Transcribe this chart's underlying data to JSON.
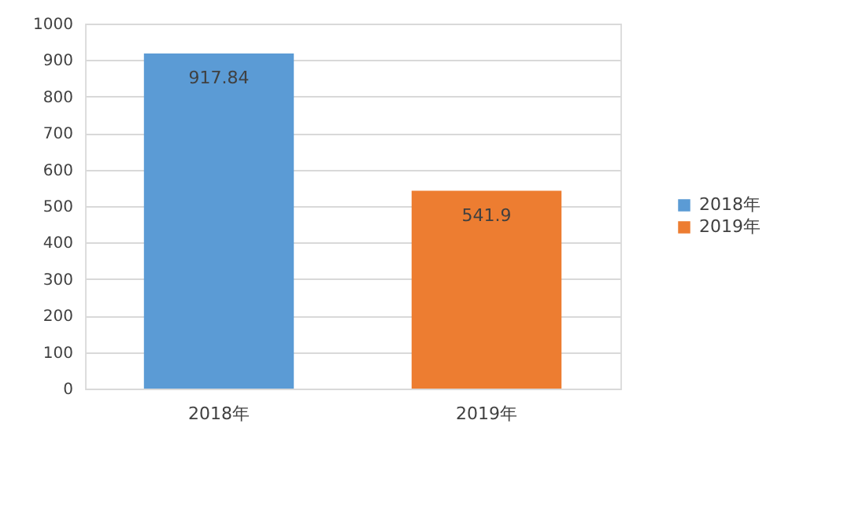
{
  "chart_data": {
    "type": "bar",
    "categories": [
      "2018年",
      "2019年"
    ],
    "series": [
      {
        "name": "2018年",
        "color": "#5b9bd5",
        "values": [
          917.84,
          null
        ]
      },
      {
        "name": "2019年",
        "color": "#ed7d31",
        "values": [
          null,
          541.9
        ]
      }
    ],
    "ylim": [
      0,
      1000
    ],
    "yticks": [
      0,
      100,
      200,
      300,
      400,
      500,
      600,
      700,
      800,
      900,
      1000
    ],
    "grid": "y",
    "legend": "right",
    "data_labels": true
  }
}
